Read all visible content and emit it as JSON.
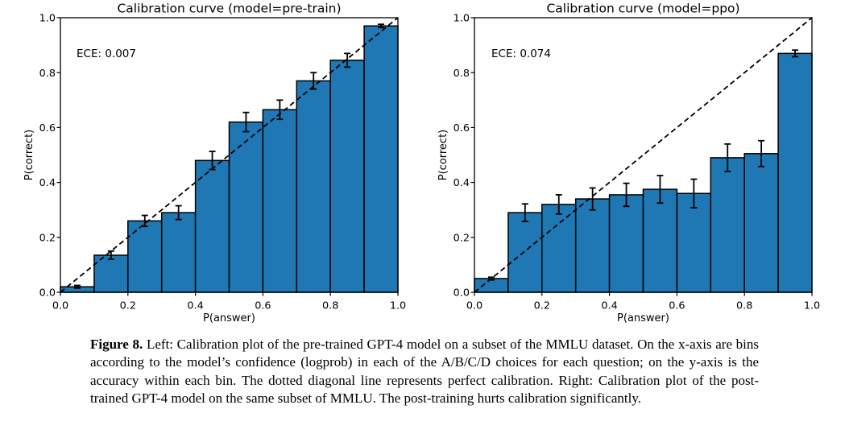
{
  "page": {
    "background": "#ffffff"
  },
  "caption": {
    "label": "Figure 8.",
    "body": "Left: Calibration plot of the pre-trained GPT-4 model on a subset of the MMLU dataset. On the x-axis are bins according to the model’s confidence (logprob) in each of the A/B/C/D choices for each question; on the y-axis is the accuracy within each bin. The dotted diagonal line represents perfect calibration. Right: Calibration plot of the post-trained GPT-4 model on the same subset of MMLU. The post-training hurts calibration significantly."
  },
  "chart_data": [
    {
      "type": "bar",
      "title": "Calibration curve (model=pre-train)",
      "ece_label": "ECE: 0.007",
      "xlabel": "P(answer)",
      "ylabel": "P(correct)",
      "xlim": [
        0.0,
        1.0
      ],
      "ylim": [
        0.0,
        1.0
      ],
      "grid": false,
      "xtick_labels": [
        "0.0",
        "0.2",
        "0.4",
        "0.6",
        "0.8",
        "1.0"
      ],
      "ytick_labels": [
        "0.0",
        "0.2",
        "0.4",
        "0.6",
        "0.8",
        "1.0"
      ],
      "bin_width": 0.1,
      "bin_centers": [
        0.05,
        0.15,
        0.25,
        0.35,
        0.45,
        0.55,
        0.65,
        0.75,
        0.85,
        0.95
      ],
      "values": [
        0.02,
        0.135,
        0.26,
        0.29,
        0.48,
        0.62,
        0.665,
        0.77,
        0.845,
        0.97
      ],
      "errors": [
        0.005,
        0.015,
        0.02,
        0.025,
        0.033,
        0.035,
        0.035,
        0.03,
        0.025,
        0.006
      ],
      "diagonal_line": {
        "from": [
          0,
          0
        ],
        "to": [
          1,
          1
        ],
        "style": "dashed",
        "color": "#000000"
      },
      "bar_color": "#1f77b4",
      "bar_edge_color": "#000000"
    },
    {
      "type": "bar",
      "title": "Calibration curve (model=ppo)",
      "ece_label": "ECE: 0.074",
      "xlabel": "P(answer)",
      "ylabel": "P(correct)",
      "xlim": [
        0.0,
        1.0
      ],
      "ylim": [
        0.0,
        1.0
      ],
      "grid": false,
      "xtick_labels": [
        "0.0",
        "0.2",
        "0.4",
        "0.6",
        "0.8",
        "1.0"
      ],
      "ytick_labels": [
        "0.0",
        "0.2",
        "0.4",
        "0.6",
        "0.8",
        "1.0"
      ],
      "bin_width": 0.1,
      "bin_centers": [
        0.05,
        0.15,
        0.25,
        0.35,
        0.45,
        0.55,
        0.65,
        0.75,
        0.85,
        0.95
      ],
      "values": [
        0.05,
        0.29,
        0.32,
        0.34,
        0.355,
        0.375,
        0.36,
        0.49,
        0.505,
        0.87
      ],
      "errors": [
        0.005,
        0.032,
        0.035,
        0.04,
        0.042,
        0.05,
        0.052,
        0.05,
        0.047,
        0.012
      ],
      "diagonal_line": {
        "from": [
          0,
          0
        ],
        "to": [
          1,
          1
        ],
        "style": "dashed",
        "color": "#000000"
      },
      "bar_color": "#1f77b4",
      "bar_edge_color": "#000000"
    }
  ]
}
